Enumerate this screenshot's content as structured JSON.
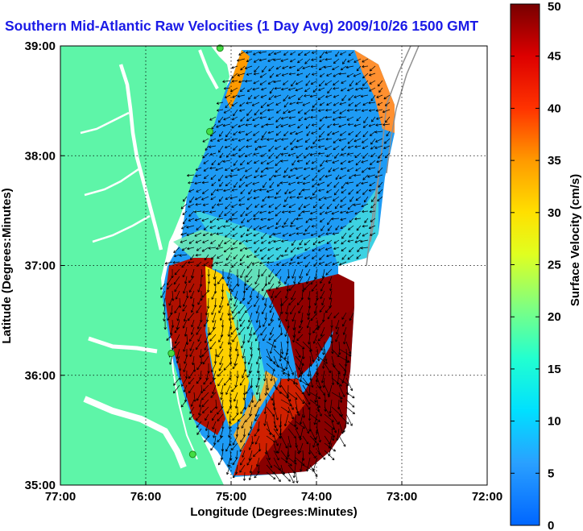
{
  "chart_data": {
    "type": "heatmap",
    "title": "Southern Mid-Atlantic Raw Velocities (1 Day Avg) 2009/10/26 1500 GMT",
    "xlabel": "Longitude (Degrees:Minutes)",
    "ylabel": "Latitude (Degrees:Minutes)",
    "colorbar_label": "Surface Velocity (cm/s)",
    "xlim": [
      -77,
      -72
    ],
    "ylim": [
      35,
      39
    ],
    "x_ticks": [
      {
        "value": -77,
        "label": "77:00"
      },
      {
        "value": -76,
        "label": "76:00"
      },
      {
        "value": -75,
        "label": "75:00"
      },
      {
        "value": -74,
        "label": "74:00"
      },
      {
        "value": -73,
        "label": "73:00"
      },
      {
        "value": -72,
        "label": "72:00"
      }
    ],
    "y_ticks": [
      {
        "value": 35,
        "label": "35:00"
      },
      {
        "value": 36,
        "label": "36:00"
      },
      {
        "value": 37,
        "label": "37:00"
      },
      {
        "value": 38,
        "label": "38:00"
      },
      {
        "value": 39,
        "label": "39:00"
      }
    ],
    "colorbar_range": [
      0,
      50
    ],
    "colorbar_ticks": [
      0,
      5,
      10,
      15,
      20,
      25,
      30,
      35,
      40,
      45,
      50
    ],
    "grid": true,
    "colors": {
      "land": "#5ef5a8",
      "water_inland": "#ffffff",
      "title": "#1a1ae6",
      "site_marker": "#44dd44"
    },
    "sites": [
      {
        "lon": -75.13,
        "lat": 38.98
      },
      {
        "lon": -75.25,
        "lat": 38.22
      },
      {
        "lon": -75.7,
        "lat": 36.2
      },
      {
        "lon": -75.45,
        "lat": 35.28
      }
    ]
  }
}
